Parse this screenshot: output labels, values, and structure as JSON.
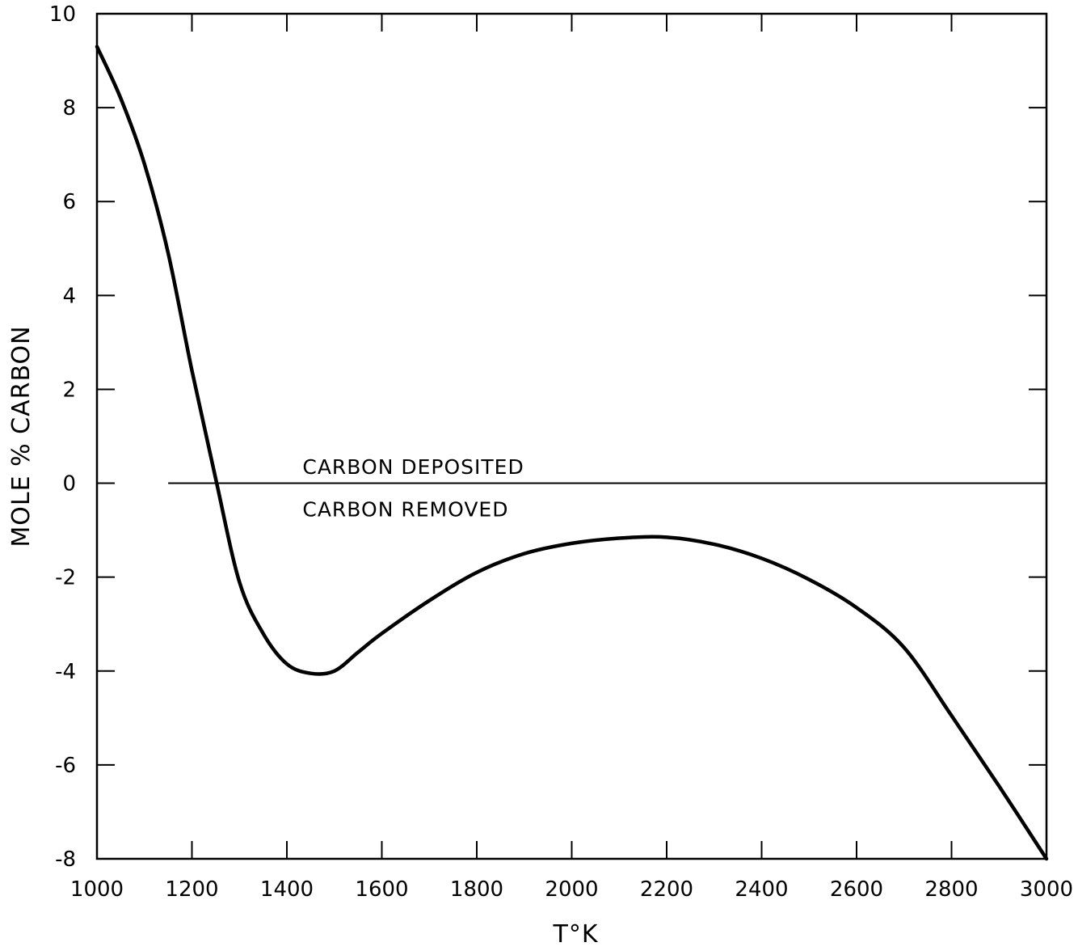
{
  "chart_data": {
    "type": "line",
    "title": "",
    "xlabel": "T°K",
    "ylabel": "MOLE % CARBON",
    "xlim": [
      1000,
      3000
    ],
    "ylim": [
      -8,
      10
    ],
    "xticks": [
      1000,
      1200,
      1400,
      1600,
      1800,
      2000,
      2200,
      2400,
      2600,
      2800,
      3000
    ],
    "xtick_labels": [
      "1000",
      "1200",
      "1400",
      "1600",
      "1800",
      "2000",
      "2200",
      "2400",
      "2600",
      "2800",
      "3000"
    ],
    "yticks": [
      -8,
      -6,
      -4,
      -2,
      0,
      2,
      4,
      6,
      8,
      10
    ],
    "ytick_labels": [
      "-8",
      "-6",
      "-4",
      "-2",
      "0",
      "2",
      "4",
      "6",
      "8",
      "10"
    ],
    "grid": false,
    "legend": "none",
    "series": [
      {
        "x": [
          1000,
          1050,
          1100,
          1150,
          1200,
          1250,
          1300,
          1350,
          1400,
          1450,
          1500,
          1550,
          1600,
          1700,
          1800,
          1900,
          2000,
          2100,
          2200,
          2300,
          2400,
          2500,
          2600,
          2700,
          2800,
          2900,
          3000
        ],
        "y": [
          9.3,
          8.2,
          6.8,
          4.9,
          2.4,
          0.1,
          -2.1,
          -3.2,
          -3.85,
          -4.05,
          -4.0,
          -3.6,
          -3.2,
          -2.5,
          -1.9,
          -1.5,
          -1.28,
          -1.17,
          -1.15,
          -1.3,
          -1.6,
          -2.05,
          -2.65,
          -3.5,
          -4.95,
          -6.45,
          -8.0
        ]
      }
    ],
    "reference_line": {
      "y": 0,
      "x_start": 1150,
      "x_end": 3000
    },
    "annotations": [
      {
        "text": "CARBON DEPOSITED",
        "x": 1450,
        "y": 0.35
      },
      {
        "text": "CARBON REMOVED",
        "x": 1450,
        "y": -0.55
      }
    ]
  }
}
